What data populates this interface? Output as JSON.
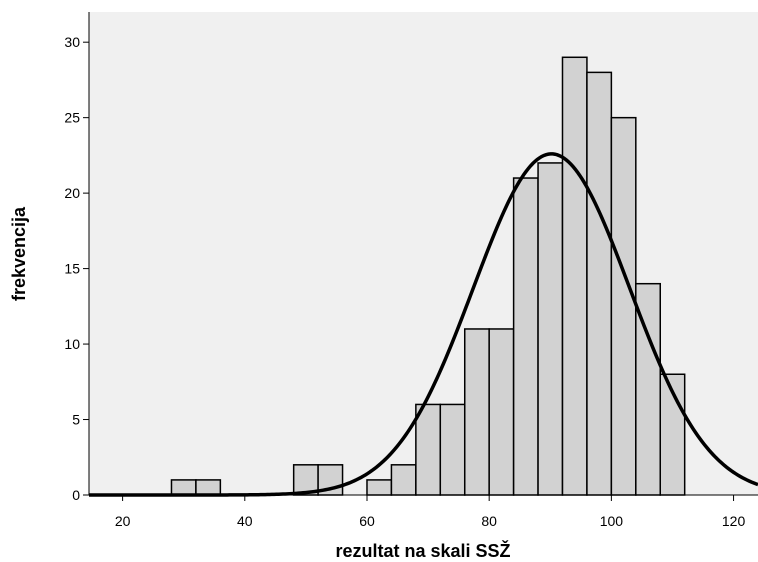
{
  "chart_data": {
    "type": "bar",
    "subtype": "histogram",
    "xlabel": "rezultat na skali SSŽ",
    "ylabel": "frekvencija",
    "xlim": [
      14.5,
      124
    ],
    "ylim": [
      0,
      32
    ],
    "xticks": [
      "20",
      "40",
      "60",
      "80",
      "100",
      "120"
    ],
    "yticks": [
      "0",
      "5",
      "10",
      "15",
      "20",
      "25",
      "30"
    ],
    "bin_width": 4,
    "bins": [
      {
        "start": 28,
        "end": 32,
        "count": 1
      },
      {
        "start": 32,
        "end": 36,
        "count": 1
      },
      {
        "start": 48,
        "end": 52,
        "count": 2
      },
      {
        "start": 52,
        "end": 56,
        "count": 2
      },
      {
        "start": 60,
        "end": 64,
        "count": 1
      },
      {
        "start": 64,
        "end": 68,
        "count": 2
      },
      {
        "start": 68,
        "end": 72,
        "count": 6
      },
      {
        "start": 72,
        "end": 76,
        "count": 6
      },
      {
        "start": 76,
        "end": 80,
        "count": 11
      },
      {
        "start": 80,
        "end": 84,
        "count": 11
      },
      {
        "start": 84,
        "end": 88,
        "count": 21
      },
      {
        "start": 88,
        "end": 92,
        "count": 22
      },
      {
        "start": 92,
        "end": 96,
        "count": 29
      },
      {
        "start": 96,
        "end": 100,
        "count": 28
      },
      {
        "start": 100,
        "end": 104,
        "count": 25
      },
      {
        "start": 104,
        "end": 108,
        "count": 14
      },
      {
        "start": 108,
        "end": 112,
        "count": 8
      }
    ],
    "normal_curve": {
      "mean": 90.2,
      "sd": 12.8,
      "peak": 22.6
    },
    "colors": {
      "plot_background": "#f0f0f0",
      "bar_fill": "#d2d2d2",
      "bar_stroke": "#000000",
      "curve": "#000000"
    },
    "grid": false,
    "legend": "none"
  }
}
